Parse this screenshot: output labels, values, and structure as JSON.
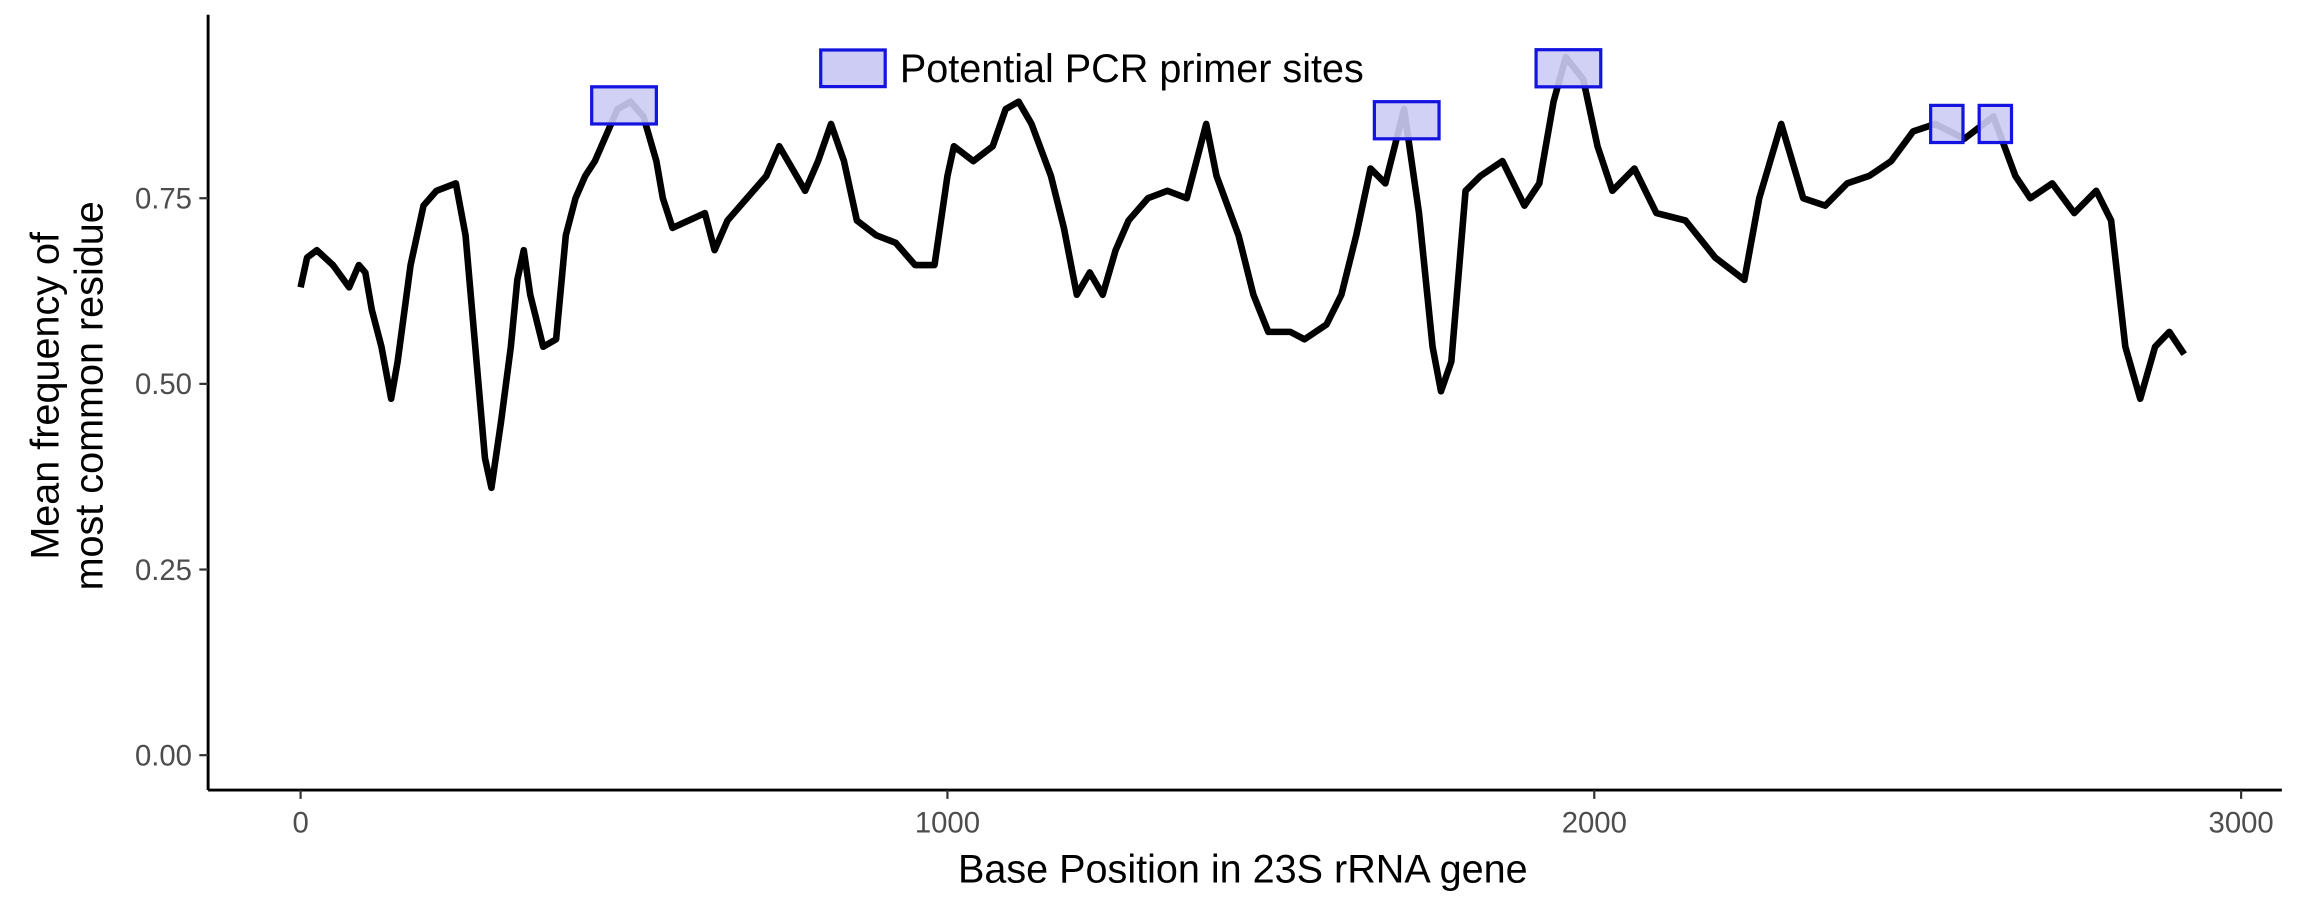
{
  "chart_data": {
    "type": "line",
    "x_label": "Base Position in 23S rRNA gene",
    "y_label": [
      "Mean frequency of",
      "most common residue"
    ],
    "x": [
      0,
      10,
      25,
      50,
      75,
      90,
      100,
      110,
      125,
      140,
      150,
      170,
      190,
      210,
      240,
      255,
      270,
      285,
      295,
      310,
      325,
      335,
      345,
      355,
      375,
      395,
      410,
      425,
      440,
      455,
      470,
      490,
      510,
      530,
      550,
      560,
      575,
      600,
      625,
      640,
      660,
      690,
      720,
      740,
      760,
      780,
      800,
      820,
      840,
      860,
      890,
      920,
      950,
      980,
      1000,
      1010,
      1040,
      1070,
      1090,
      1110,
      1130,
      1160,
      1180,
      1200,
      1220,
      1240,
      1260,
      1280,
      1310,
      1340,
      1370,
      1400,
      1416,
      1450,
      1473,
      1496,
      1530,
      1552,
      1586,
      1609,
      1632,
      1654,
      1677,
      1706,
      1729,
      1750,
      1763,
      1779,
      1801,
      1824,
      1858,
      1892,
      1915,
      1937,
      1956,
      1983,
      2005,
      2028,
      2062,
      2096,
      2141,
      2187,
      2232,
      2255,
      2289,
      2323,
      2357,
      2391,
      2425,
      2459,
      2493,
      2527,
      2572,
      2617,
      2651,
      2674,
      2708,
      2742,
      2776,
      2799,
      2821,
      2844,
      2867,
      2889,
      2912
    ],
    "series": [
      {
        "color": "#000000",
        "values": [
          0.63,
          0.67,
          0.68,
          0.66,
          0.63,
          0.66,
          0.65,
          0.6,
          0.55,
          0.48,
          0.53,
          0.66,
          0.74,
          0.76,
          0.77,
          0.7,
          0.55,
          0.4,
          0.36,
          0.45,
          0.55,
          0.64,
          0.68,
          0.62,
          0.55,
          0.56,
          0.7,
          0.75,
          0.78,
          0.8,
          0.83,
          0.87,
          0.88,
          0.86,
          0.8,
          0.75,
          0.71,
          0.72,
          0.73,
          0.68,
          0.72,
          0.75,
          0.78,
          0.82,
          0.79,
          0.76,
          0.8,
          0.85,
          0.8,
          0.72,
          0.7,
          0.69,
          0.66,
          0.66,
          0.78,
          0.82,
          0.8,
          0.82,
          0.87,
          0.88,
          0.85,
          0.78,
          0.71,
          0.62,
          0.65,
          0.62,
          0.68,
          0.72,
          0.75,
          0.76,
          0.75,
          0.85,
          0.78,
          0.7,
          0.62,
          0.57,
          0.57,
          0.56,
          0.58,
          0.62,
          0.7,
          0.79,
          0.77,
          0.87,
          0.73,
          0.55,
          0.49,
          0.53,
          0.76,
          0.78,
          0.8,
          0.74,
          0.77,
          0.88,
          0.94,
          0.91,
          0.82,
          0.76,
          0.79,
          0.73,
          0.72,
          0.67,
          0.64,
          0.75,
          0.85,
          0.75,
          0.74,
          0.77,
          0.78,
          0.8,
          0.84,
          0.85,
          0.83,
          0.86,
          0.78,
          0.75,
          0.77,
          0.73,
          0.76,
          0.72,
          0.55,
          0.48,
          0.55,
          0.57,
          0.54
        ]
      }
    ],
    "regions": {
      "name": "Potential PCR primer sites",
      "fill": "#ccccf5",
      "stroke": "#1414e0",
      "items": [
        {
          "x": [
            450,
            550
          ],
          "y": [
            0.85,
            0.9
          ]
        },
        {
          "x": [
            1660,
            1760
          ],
          "y": [
            0.83,
            0.88
          ]
        },
        {
          "x": [
            1910,
            2010
          ],
          "y": [
            0.9,
            0.95
          ]
        },
        {
          "x": [
            2520,
            2570
          ],
          "y": [
            0.825,
            0.875
          ]
        },
        {
          "x": [
            2595,
            2645
          ],
          "y": [
            0.825,
            0.875
          ]
        }
      ]
    },
    "legend": "top",
    "xlim": [
      -143,
      3063
    ],
    "ylim": [
      -0.047,
      0.997
    ],
    "xticks": [
      0,
      1000,
      2000,
      3000
    ],
    "yticks": [
      {
        "value": 0,
        "label": "0.00"
      },
      {
        "value": 0.25,
        "label": "0.25"
      },
      {
        "value": 0.5,
        "label": "0.50"
      },
      {
        "value": 0.75,
        "label": "0.75"
      }
    ]
  }
}
